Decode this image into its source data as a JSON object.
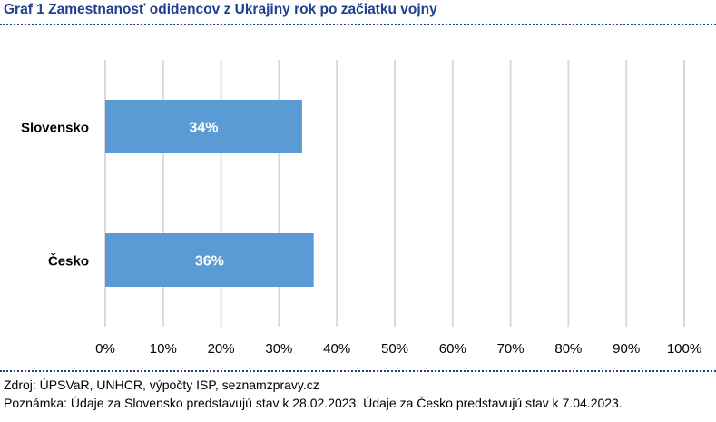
{
  "title": "Graf 1 Zamestnanosť odidencov z Ukrajiny rok po začiatku vojny",
  "source": "Zdroj: ÚPSVaR, UNHCR, výpočty ISP, seznamzpravy.cz",
  "note": "Poznámka: Údaje za Slovensko predstavujú stav k 28.02.2023. Údaje za Česko predstavujú stav k 7.04.2023.",
  "colors": {
    "bar": "#5b9bd5",
    "grid": "#d9d9d9",
    "title": "#1f3f8f"
  },
  "chart_data": {
    "type": "bar",
    "orientation": "horizontal",
    "categories": [
      "Slovensko",
      "Česko"
    ],
    "values": [
      34,
      36
    ],
    "data_labels": [
      "34%",
      "36%"
    ],
    "xlim": [
      0,
      100
    ],
    "xticks": [
      0,
      10,
      20,
      30,
      40,
      50,
      60,
      70,
      80,
      90,
      100
    ],
    "xtick_labels": [
      "0%",
      "10%",
      "20%",
      "30%",
      "40%",
      "50%",
      "60%",
      "70%",
      "80%",
      "90%",
      "100%"
    ],
    "grid": true,
    "legend": "none"
  }
}
